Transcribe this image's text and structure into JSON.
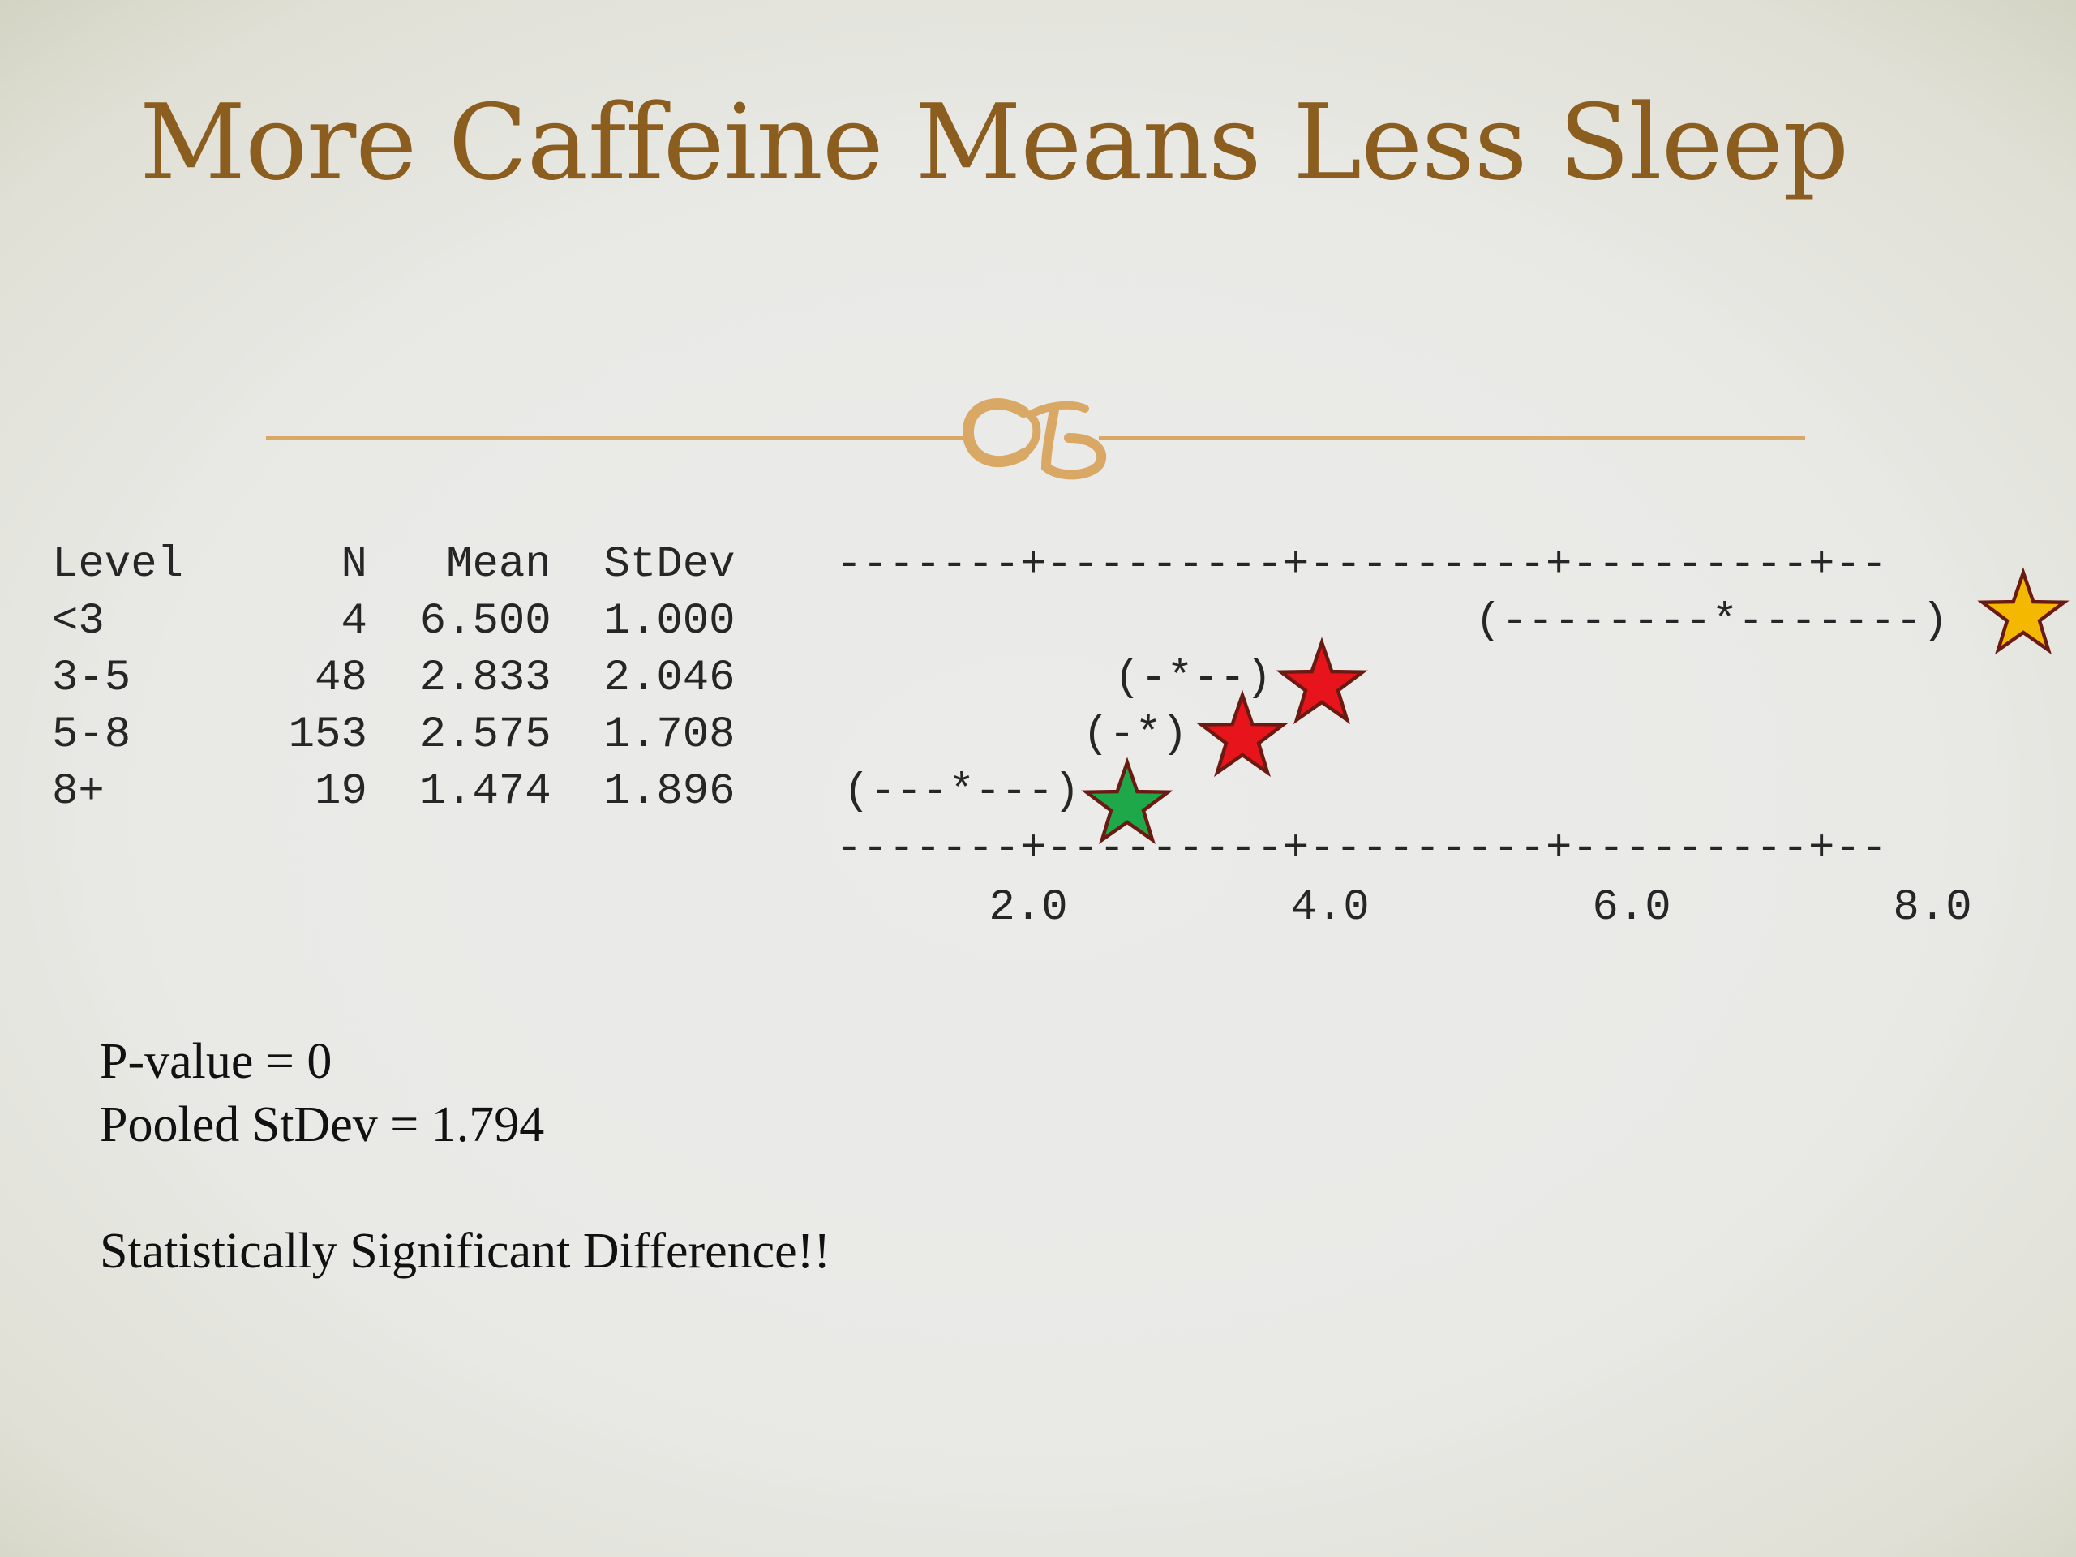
{
  "slide": {
    "title": "More Caffeine Means Less Sleep"
  },
  "anova": {
    "header_line": "Level      N   Mean  StDev",
    "rows": [
      {
        "text": "<3         4  6.500  1.000",
        "interval": "(--------*-------)"
      },
      {
        "text": "3-5       48  2.833  2.046",
        "interval": "(-*--)"
      },
      {
        "text": "5-8      153  2.575  1.708",
        "interval": "(-*)"
      },
      {
        "text": "8+        19  1.474  1.896",
        "interval": "(---*---)"
      }
    ],
    "axis_rule": "-------+---------+---------+---------+--",
    "axis_ticks": [
      "2.0",
      "4.0",
      "6.0",
      "8.0"
    ]
  },
  "stars": [
    {
      "group": "<3",
      "color": "#f5b800"
    },
    {
      "group": "3-5",
      "color": "#e8141c"
    },
    {
      "group": "5-8",
      "color": "#e8141c"
    },
    {
      "group": "8+",
      "color": "#1ea84a"
    }
  ],
  "summary": {
    "p_value": "P-value = 0",
    "pooled_stdev": "Pooled StDev = 1.794",
    "conclusion": "Statistically Significant Difference!!"
  },
  "colors": {
    "title": "#8b5e1f",
    "divider": "#d9a865",
    "star_outline": "#6b1a12"
  }
}
